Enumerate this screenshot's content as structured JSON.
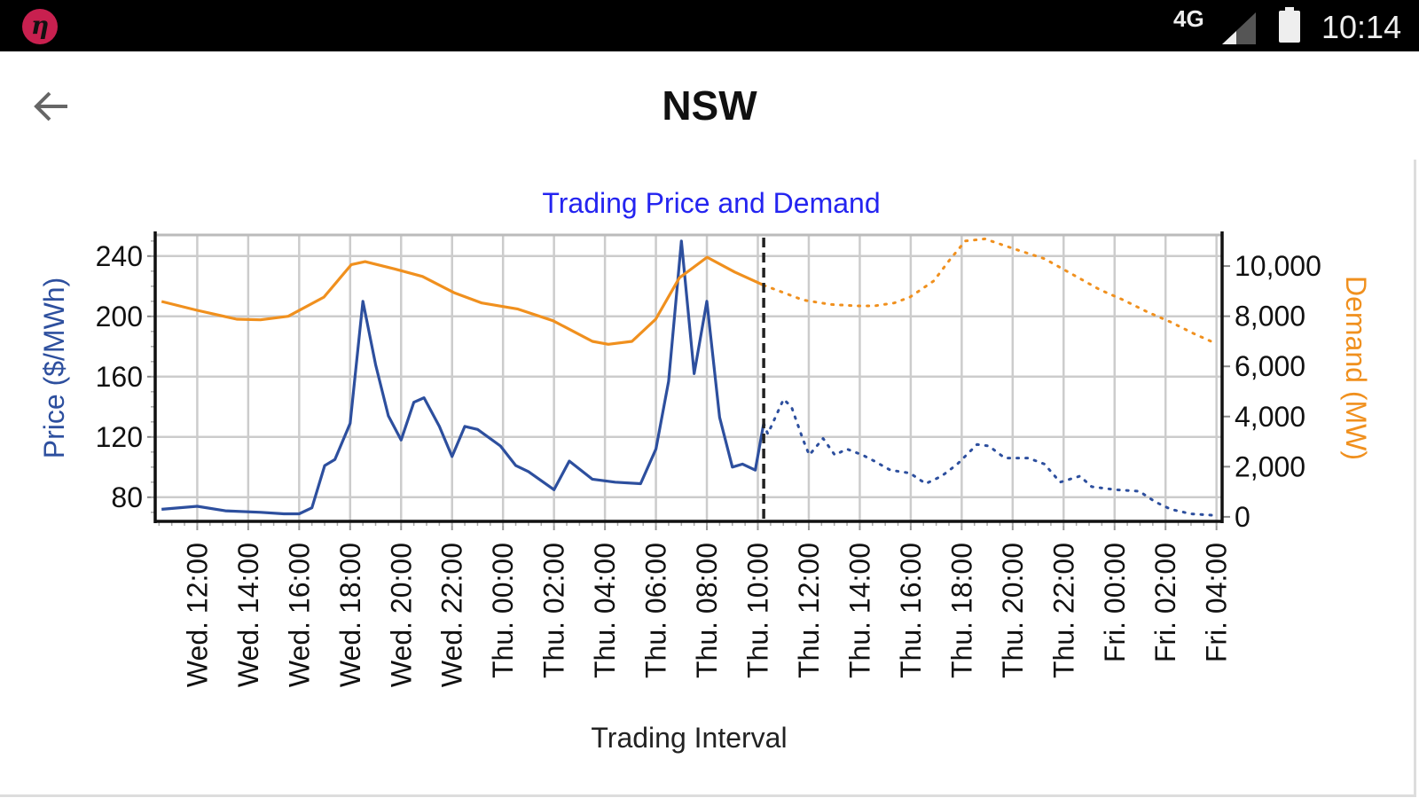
{
  "status_bar": {
    "network": "4G",
    "time": "10:14",
    "app_icon_glyph": "η"
  },
  "header": {
    "title": "NSW",
    "back_icon": "arrow-left-icon"
  },
  "colors": {
    "price": "#2d4f9e",
    "demand": "#f0901e",
    "title": "#2424f0",
    "grid": "#cccccc"
  },
  "chart_data": {
    "type": "line",
    "title": "Trading Price and Demand",
    "xlabel": "Trading Interval",
    "ylabel_left": "Price ($/MWh)",
    "ylabel_right": "Demand (MW)",
    "x_units": "hours since Wed 00:00",
    "xlim": [
      10.35,
      52.22
    ],
    "ylim_left": [
      64,
      254
    ],
    "ylim_right": [
      -180,
      11240
    ],
    "grid": true,
    "current_interval_marker": 34.23,
    "x_ticks": {
      "values": [
        12,
        14,
        16,
        18,
        20,
        22,
        24,
        26,
        28,
        30,
        32,
        34,
        36,
        38,
        40,
        42,
        44,
        46,
        48,
        50,
        52
      ],
      "labels": [
        "Wed. 12:00",
        "Wed. 14:00",
        "Wed. 16:00",
        "Wed. 18:00",
        "Wed. 20:00",
        "Wed. 22:00",
        "Thu. 00:00",
        "Thu. 02:00",
        "Thu. 04:00",
        "Thu. 06:00",
        "Thu. 08:00",
        "Thu. 10:00",
        "Thu. 12:00",
        "Thu. 14:00",
        "Thu. 16:00",
        "Thu. 18:00",
        "Thu. 20:00",
        "Thu. 22:00",
        "Fri. 00:00",
        "Fri. 02:00",
        "Fri. 04:00"
      ]
    },
    "left_ticks": {
      "values": [
        80,
        120,
        160,
        200,
        240
      ],
      "labels": [
        "80",
        "120",
        "160",
        "200",
        "240"
      ]
    },
    "right_ticks": {
      "values": [
        0,
        2000,
        4000,
        6000,
        8000,
        10000
      ],
      "labels": [
        "0",
        "2,000",
        "4,000",
        "6,000",
        "8,000",
        "10,000"
      ]
    },
    "series": [
      {
        "name": "Price (actual)",
        "axis": "left",
        "style": "solid",
        "x": [
          10.6,
          12,
          13.1,
          14.5,
          15.4,
          16,
          16.5,
          17,
          17.4,
          18,
          18.5,
          19,
          19.5,
          20,
          20.5,
          20.9,
          21.5,
          22,
          22.5,
          23,
          23.9,
          24.5,
          25,
          26,
          26.6,
          27.5,
          28.4,
          29.4,
          30,
          30.5,
          31,
          31.5,
          32,
          32.5,
          33,
          33.4,
          33.9,
          34.23
        ],
        "y": [
          72,
          74,
          71,
          70,
          69,
          69,
          73,
          101,
          105,
          129,
          210,
          168,
          134,
          118,
          143,
          146,
          127,
          107,
          127,
          125,
          114,
          101,
          97,
          85,
          104,
          92,
          90,
          89,
          112,
          157,
          250,
          162,
          210,
          133,
          100,
          102,
          98,
          129
        ]
      },
      {
        "name": "Price (forecast)",
        "axis": "left",
        "style": "dotted",
        "x": [
          34.23,
          34.39,
          35.01,
          35.32,
          35.78,
          36.02,
          36.56,
          37.02,
          37.49,
          38.11,
          38.57,
          39.2,
          39.97,
          40.59,
          41.21,
          41.83,
          42.6,
          43.07,
          43.69,
          44.62,
          45.25,
          45.86,
          46.64,
          47.1,
          48.03,
          48.97,
          49.59,
          50.21,
          50.99,
          51.92
        ],
        "y": [
          129,
          122,
          145,
          140,
          118,
          108,
          119,
          108,
          112,
          108,
          104,
          98,
          96,
          89,
          94,
          102,
          115,
          114,
          106,
          106,
          102,
          90,
          94,
          87,
          85,
          84,
          77,
          72,
          69,
          68
        ]
      },
      {
        "name": "Demand (actual)",
        "axis": "right",
        "style": "solid",
        "x": [
          10.6,
          12,
          13.55,
          14.48,
          15.57,
          16.97,
          18.05,
          18.59,
          19.76,
          20.84,
          22.08,
          23.17,
          24.56,
          25.96,
          27.51,
          28.13,
          29.06,
          29.99,
          30.92,
          32.01,
          33.09,
          34.23
        ],
        "y": [
          8587,
          8233,
          7880,
          7855,
          7998,
          8763,
          10060,
          10177,
          9883,
          9587,
          8940,
          8527,
          8293,
          7820,
          6996,
          6880,
          6996,
          7880,
          9530,
          10353,
          9763,
          9235
        ]
      },
      {
        "name": "Demand (forecast)",
        "axis": "right",
        "style": "dotted",
        "x": [
          34.23,
          34.7,
          35.78,
          36.87,
          37.95,
          38.57,
          39.35,
          39.97,
          40.91,
          41.52,
          42.14,
          42.91,
          44.0,
          45.25,
          46.18,
          47.42,
          48.35,
          49.28,
          50.21,
          51.14,
          51.92
        ],
        "y": [
          9235,
          9058,
          8646,
          8469,
          8410,
          8410,
          8527,
          8763,
          9411,
          10235,
          11000,
          11084,
          10707,
          10294,
          9763,
          9058,
          8646,
          8174,
          7763,
          7290,
          6936
        ]
      }
    ]
  }
}
